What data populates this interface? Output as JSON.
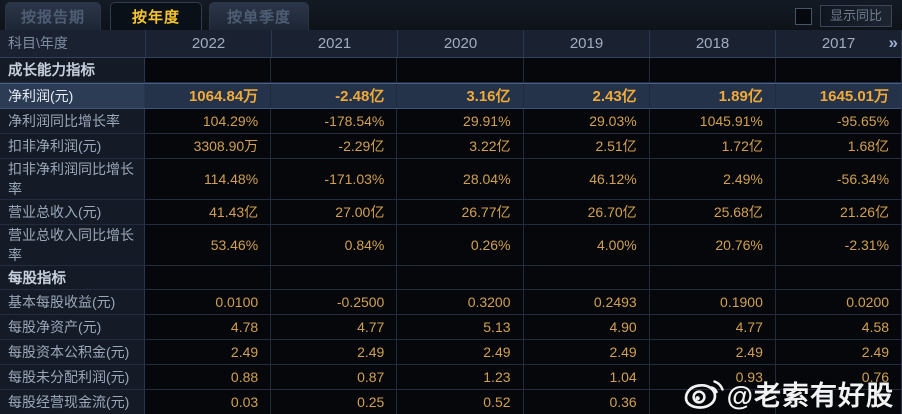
{
  "tabs": [
    {
      "label": "按报告期",
      "active": false
    },
    {
      "label": "按年度",
      "active": true
    },
    {
      "label": "按单季度",
      "active": false
    }
  ],
  "controls": {
    "show_yoy_label": "显示同比",
    "checkbox_checked": false
  },
  "table": {
    "corner_label": "科目\\年度",
    "years": [
      "2022",
      "2021",
      "2020",
      "2019",
      "2018",
      "2017"
    ],
    "more_icon": "»",
    "rows": [
      {
        "label": "成长能力指标",
        "type": "section",
        "values": [
          "",
          "",
          "",
          "",
          "",
          ""
        ]
      },
      {
        "label": "净利润(元)",
        "type": "highlight",
        "values": [
          "1064.84万",
          "-2.48亿",
          "3.16亿",
          "2.43亿",
          "1.89亿",
          "1645.01万"
        ]
      },
      {
        "label": "净利润同比增长率",
        "type": "data",
        "values": [
          "104.29%",
          "-178.54%",
          "29.91%",
          "29.03%",
          "1045.91%",
          "-95.65%"
        ]
      },
      {
        "label": "扣非净利润(元)",
        "type": "data",
        "values": [
          "3308.90万",
          "-2.29亿",
          "3.22亿",
          "2.51亿",
          "1.72亿",
          "1.68亿"
        ]
      },
      {
        "label": "扣非净利润同比增长率",
        "type": "data",
        "values": [
          "114.48%",
          "-171.03%",
          "28.04%",
          "46.12%",
          "2.49%",
          "-56.34%"
        ]
      },
      {
        "label": "营业总收入(元)",
        "type": "data",
        "values": [
          "41.43亿",
          "27.00亿",
          "26.77亿",
          "26.70亿",
          "25.68亿",
          "21.26亿"
        ]
      },
      {
        "label": "营业总收入同比增长率",
        "type": "data",
        "values": [
          "53.46%",
          "0.84%",
          "0.26%",
          "4.00%",
          "20.76%",
          "-2.31%"
        ]
      },
      {
        "label": "每股指标",
        "type": "section",
        "values": [
          "",
          "",
          "",
          "",
          "",
          ""
        ]
      },
      {
        "label": "基本每股收益(元)",
        "type": "data",
        "values": [
          "0.0100",
          "-0.2500",
          "0.3200",
          "0.2493",
          "0.1900",
          "0.0200"
        ]
      },
      {
        "label": "每股净资产(元)",
        "type": "data",
        "values": [
          "4.78",
          "4.77",
          "5.13",
          "4.90",
          "4.77",
          "4.58"
        ]
      },
      {
        "label": "每股资本公积金(元)",
        "type": "data",
        "values": [
          "2.49",
          "2.49",
          "2.49",
          "2.49",
          "2.49",
          "2.49"
        ]
      },
      {
        "label": "每股未分配利润(元)",
        "type": "data",
        "values": [
          "0.88",
          "0.87",
          "1.23",
          "1.04",
          "0.93",
          "0.76"
        ]
      },
      {
        "label": "每股经营现金流(元)",
        "type": "data",
        "values": [
          "0.03",
          "0.25",
          "0.52",
          "0.36",
          "",
          ""
        ]
      }
    ]
  },
  "watermark": {
    "text": "@老索有好股"
  },
  "colors": {
    "value_gold": "#d2a050",
    "highlight_gold": "#f0aa38",
    "highlight_row_bg": "#2d3c55",
    "active_tab_text": "#f6c42d",
    "label_text": "#9aa7b9",
    "header_bg": "#1a2231",
    "page_bg": "#0b0e14"
  }
}
